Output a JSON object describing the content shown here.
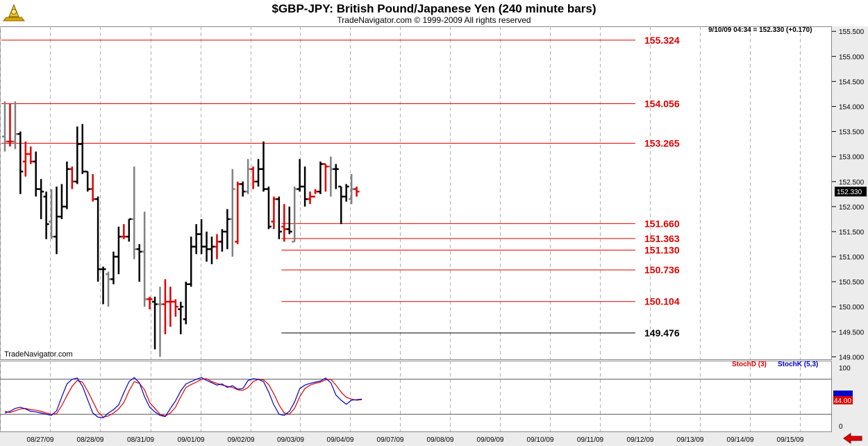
{
  "header": {
    "title": "$GBP-JPY:  British Pound/Japanese Yen  (240 minute bars)",
    "subtitle": "TradeNavigator.com © 1999-2009 All rights reserved"
  },
  "price_readout": "9/10/09 04:34 = 152.330 (+0.170)",
  "watermark": "TradeNavigator.com",
  "last_price_label": "152.330",
  "stoch_legend": {
    "d_label": "StochD (3)",
    "k_label": "StochK (5,3)",
    "value_label": "44.00"
  },
  "colors": {
    "up": "#000000",
    "down": "#e00000",
    "neutral": "#808080",
    "level_red": "#e00000",
    "stoch_k": "#0000cc",
    "stoch_d": "#e00000",
    "panel_bg": "#ececec"
  },
  "chart_data": [
    {
      "type": "ohlc",
      "title": "$GBP-JPY:  British Pound/Japanese Yen  (240 minute bars)",
      "ylim": [
        148.95,
        155.6
      ],
      "y_ticks": [
        149.0,
        149.5,
        150.0,
        150.5,
        151.0,
        151.5,
        152.0,
        152.5,
        153.0,
        153.5,
        154.0,
        154.5,
        155.0,
        155.5
      ],
      "x_ticks": [
        "08/27/09",
        "08/28/09",
        "08/31/09",
        "09/01/09",
        "09/02/09",
        "09/03/09",
        "09/04/09",
        "09/07/09",
        "09/08/09",
        "09/09/09",
        "09/10/09",
        "09/11/09",
        "09/12/09",
        "09/13/09",
        "09/14/09",
        "09/15/09"
      ],
      "levels": [
        {
          "value": 155.324,
          "label": "155.324",
          "color": "red",
          "from_bar": 0
        },
        {
          "value": 154.056,
          "label": "154.056",
          "color": "red",
          "from_bar": 0
        },
        {
          "value": 153.265,
          "label": "153.265",
          "color": "red",
          "from_bar": 0
        },
        {
          "value": 151.66,
          "label": "151.660",
          "color": "red",
          "from_bar": 54
        },
        {
          "value": 151.363,
          "label": "151.363",
          "color": "red",
          "from_bar": 54
        },
        {
          "value": 151.13,
          "label": "151.130",
          "color": "red",
          "from_bar": 54
        },
        {
          "value": 150.736,
          "label": "150.736",
          "color": "red",
          "from_bar": 54
        },
        {
          "value": 150.104,
          "label": "150.104",
          "color": "red",
          "from_bar": 54
        },
        {
          "value": 149.476,
          "label": "149.476",
          "color": "black",
          "from_bar": 54
        }
      ],
      "bars": [
        {
          "o": 153.4,
          "h": 154.1,
          "l": 153.1,
          "c": 153.3,
          "dir": "n"
        },
        {
          "o": 153.3,
          "h": 154.05,
          "l": 153.2,
          "c": 153.3,
          "dir": "d"
        },
        {
          "o": 153.3,
          "h": 154.1,
          "l": 153.15,
          "c": 153.45,
          "dir": "n"
        },
        {
          "o": 153.45,
          "h": 153.5,
          "l": 152.25,
          "c": 152.7,
          "dir": "u"
        },
        {
          "o": 152.9,
          "h": 153.3,
          "l": 152.6,
          "c": 153.05,
          "dir": "d"
        },
        {
          "o": 153.05,
          "h": 153.2,
          "l": 152.85,
          "c": 152.9,
          "dir": "d"
        },
        {
          "o": 152.9,
          "h": 153.1,
          "l": 152.2,
          "c": 152.35,
          "dir": "u"
        },
        {
          "o": 152.35,
          "h": 152.55,
          "l": 151.75,
          "c": 152.3,
          "dir": "u"
        },
        {
          "o": 152.2,
          "h": 152.3,
          "l": 151.35,
          "c": 151.65,
          "dir": "u"
        },
        {
          "o": 151.7,
          "h": 152.35,
          "l": 151.35,
          "c": 151.4,
          "dir": "n"
        },
        {
          "o": 151.4,
          "h": 152.4,
          "l": 151.05,
          "c": 151.8,
          "dir": "u"
        },
        {
          "o": 151.8,
          "h": 152.45,
          "l": 151.75,
          "c": 152.0,
          "dir": "u"
        },
        {
          "o": 152.0,
          "h": 152.9,
          "l": 151.95,
          "c": 152.75,
          "dir": "u"
        },
        {
          "o": 152.75,
          "h": 152.8,
          "l": 152.35,
          "c": 152.5,
          "dir": "d"
        },
        {
          "o": 152.5,
          "h": 153.6,
          "l": 152.45,
          "c": 153.25,
          "dir": "u"
        },
        {
          "o": 153.25,
          "h": 153.65,
          "l": 152.65,
          "c": 152.7,
          "dir": "u"
        },
        {
          "o": 152.7,
          "h": 152.7,
          "l": 152.3,
          "c": 152.35,
          "dir": "u"
        },
        {
          "o": 152.35,
          "h": 152.65,
          "l": 152.1,
          "c": 152.15,
          "dir": "d"
        },
        {
          "o": 152.15,
          "h": 152.2,
          "l": 150.5,
          "c": 150.75,
          "dir": "u"
        },
        {
          "o": 150.75,
          "h": 150.8,
          "l": 150.05,
          "c": 150.75,
          "dir": "u"
        },
        {
          "o": 150.65,
          "h": 150.7,
          "l": 150.0,
          "c": 150.55,
          "dir": "n"
        },
        {
          "o": 150.55,
          "h": 151.1,
          "l": 150.45,
          "c": 151.0,
          "dir": "u"
        },
        {
          "o": 151.0,
          "h": 151.6,
          "l": 150.65,
          "c": 151.4,
          "dir": "u"
        },
        {
          "o": 151.4,
          "h": 151.65,
          "l": 151.35,
          "c": 151.4,
          "dir": "d"
        },
        {
          "o": 151.4,
          "h": 151.75,
          "l": 151.3,
          "c": 151.75,
          "dir": "u"
        },
        {
          "o": 151.75,
          "h": 152.8,
          "l": 150.95,
          "c": 151.15,
          "dir": "n"
        },
        {
          "o": 151.15,
          "h": 151.25,
          "l": 150.5,
          "c": 151.1,
          "dir": "u"
        },
        {
          "o": 151.1,
          "h": 151.9,
          "l": 150.0,
          "c": 150.15,
          "dir": "n"
        },
        {
          "o": 150.15,
          "h": 150.2,
          "l": 149.95,
          "c": 150.15,
          "dir": "d"
        },
        {
          "o": 150.1,
          "h": 150.2,
          "l": 149.15,
          "c": 150.05,
          "dir": "u"
        },
        {
          "o": 150.05,
          "h": 150.4,
          "l": 149.0,
          "c": 150.05,
          "dir": "n"
        },
        {
          "o": 150.05,
          "h": 150.55,
          "l": 149.45,
          "c": 150.1,
          "dir": "d"
        },
        {
          "o": 150.1,
          "h": 150.4,
          "l": 149.6,
          "c": 150.1,
          "dir": "d"
        },
        {
          "o": 150.1,
          "h": 150.15,
          "l": 149.8,
          "c": 150.0,
          "dir": "d"
        },
        {
          "o": 149.95,
          "h": 150.1,
          "l": 149.45,
          "c": 150.0,
          "dir": "u"
        },
        {
          "o": 149.75,
          "h": 150.5,
          "l": 149.65,
          "c": 150.45,
          "dir": "u"
        },
        {
          "o": 150.45,
          "h": 151.4,
          "l": 150.4,
          "c": 151.2,
          "dir": "u"
        },
        {
          "o": 151.2,
          "h": 151.65,
          "l": 151.05,
          "c": 151.45,
          "dir": "u"
        },
        {
          "o": 151.45,
          "h": 151.75,
          "l": 151.05,
          "c": 151.2,
          "dir": "u"
        },
        {
          "o": 151.2,
          "h": 151.5,
          "l": 150.9,
          "c": 151.15,
          "dir": "u"
        },
        {
          "o": 151.15,
          "h": 151.4,
          "l": 150.85,
          "c": 151.2,
          "dir": "u"
        },
        {
          "o": 151.2,
          "h": 151.45,
          "l": 150.95,
          "c": 151.3,
          "dir": "d"
        },
        {
          "o": 151.3,
          "h": 151.55,
          "l": 151.1,
          "c": 151.5,
          "dir": "u"
        },
        {
          "o": 151.5,
          "h": 151.95,
          "l": 151.15,
          "c": 151.75,
          "dir": "u"
        },
        {
          "o": 151.75,
          "h": 152.75,
          "l": 151.0,
          "c": 152.35,
          "dir": "n"
        },
        {
          "o": 151.3,
          "h": 152.5,
          "l": 151.25,
          "c": 152.45,
          "dir": "d"
        },
        {
          "o": 152.45,
          "h": 152.5,
          "l": 152.2,
          "c": 152.3,
          "dir": "u"
        },
        {
          "o": 152.3,
          "h": 152.95,
          "l": 152.25,
          "c": 152.75,
          "dir": "n"
        },
        {
          "o": 152.75,
          "h": 152.8,
          "l": 152.35,
          "c": 152.5,
          "dir": "d"
        },
        {
          "o": 152.5,
          "h": 152.95,
          "l": 152.4,
          "c": 152.75,
          "dir": "u"
        },
        {
          "o": 152.75,
          "h": 153.3,
          "l": 152.3,
          "c": 152.35,
          "dir": "u"
        },
        {
          "o": 152.35,
          "h": 152.4,
          "l": 151.55,
          "c": 151.6,
          "dir": "u"
        },
        {
          "o": 151.7,
          "h": 152.2,
          "l": 151.55,
          "c": 152.15,
          "dir": "d"
        },
        {
          "o": 152.15,
          "h": 152.2,
          "l": 151.35,
          "c": 151.5,
          "dir": "u"
        },
        {
          "o": 151.6,
          "h": 152.05,
          "l": 151.3,
          "c": 151.55,
          "dir": "d"
        },
        {
          "o": 151.55,
          "h": 152.0,
          "l": 151.45,
          "c": 151.5,
          "dir": "u"
        },
        {
          "o": 151.3,
          "h": 152.4,
          "l": 151.3,
          "c": 152.35,
          "dir": "n"
        },
        {
          "o": 152.35,
          "h": 152.95,
          "l": 152.3,
          "c": 152.4,
          "dir": "u"
        },
        {
          "o": 152.4,
          "h": 152.8,
          "l": 152.0,
          "c": 152.15,
          "dir": "u"
        },
        {
          "o": 152.15,
          "h": 152.3,
          "l": 152.05,
          "c": 152.2,
          "dir": "d"
        },
        {
          "o": 152.2,
          "h": 152.35,
          "l": 152.25,
          "c": 152.3,
          "dir": "d"
        },
        {
          "o": 152.3,
          "h": 152.9,
          "l": 152.25,
          "c": 152.85,
          "dir": "u"
        },
        {
          "o": 152.85,
          "h": 152.85,
          "l": 152.3,
          "c": 152.8,
          "dir": "d"
        },
        {
          "o": 152.8,
          "h": 153.0,
          "l": 152.2,
          "c": 152.75,
          "dir": "n"
        },
        {
          "o": 152.75,
          "h": 152.85,
          "l": 152.35,
          "c": 152.75,
          "dir": "u"
        },
        {
          "o": 152.4,
          "h": 152.4,
          "l": 151.65,
          "c": 152.2,
          "dir": "u"
        },
        {
          "o": 152.2,
          "h": 152.45,
          "l": 152.1,
          "c": 152.4,
          "dir": "u"
        },
        {
          "o": 152.15,
          "h": 152.65,
          "l": 152.05,
          "c": 152.35,
          "dir": "n"
        },
        {
          "o": 152.35,
          "h": 152.4,
          "l": 152.2,
          "c": 152.3,
          "dir": "d"
        }
      ]
    },
    {
      "type": "line",
      "title": "",
      "ylim": [
        0,
        100
      ],
      "y_ticks": [
        0,
        44,
        100
      ],
      "overbought": 80,
      "oversold": 20,
      "series": [
        {
          "name": "StochD (3)",
          "color": "red",
          "values": [
            25,
            23,
            26,
            29,
            30,
            28,
            27,
            25,
            22,
            20,
            21,
            35,
            52,
            68,
            78,
            75,
            60,
            42,
            24,
            15,
            17,
            22,
            29,
            40,
            60,
            76,
            73,
            62,
            40,
            30,
            20,
            17,
            22,
            32,
            50,
            66,
            71,
            75,
            80,
            81,
            76,
            73,
            70,
            68,
            66,
            62,
            61,
            66,
            76,
            80,
            79,
            71,
            55,
            36,
            22,
            20,
            30,
            50,
            64,
            70,
            73,
            75,
            79,
            80,
            70,
            58,
            49,
            46,
            44,
            45
          ]
        },
        {
          "name": "StochK (5,3)",
          "color": "blue",
          "values": [
            22,
            25,
            30,
            32,
            29,
            25,
            24,
            22,
            20,
            18,
            26,
            50,
            72,
            80,
            82,
            68,
            45,
            22,
            15,
            14,
            22,
            28,
            36,
            57,
            76,
            83,
            74,
            50,
            32,
            24,
            18,
            16,
            30,
            43,
            60,
            72,
            76,
            80,
            83,
            78,
            74,
            70,
            72,
            66,
            69,
            63,
            64,
            78,
            81,
            80,
            76,
            58,
            36,
            20,
            18,
            25,
            41,
            64,
            70,
            73,
            75,
            77,
            82,
            74,
            53,
            44,
            37,
            44,
            45,
            46
          ]
        }
      ]
    }
  ]
}
